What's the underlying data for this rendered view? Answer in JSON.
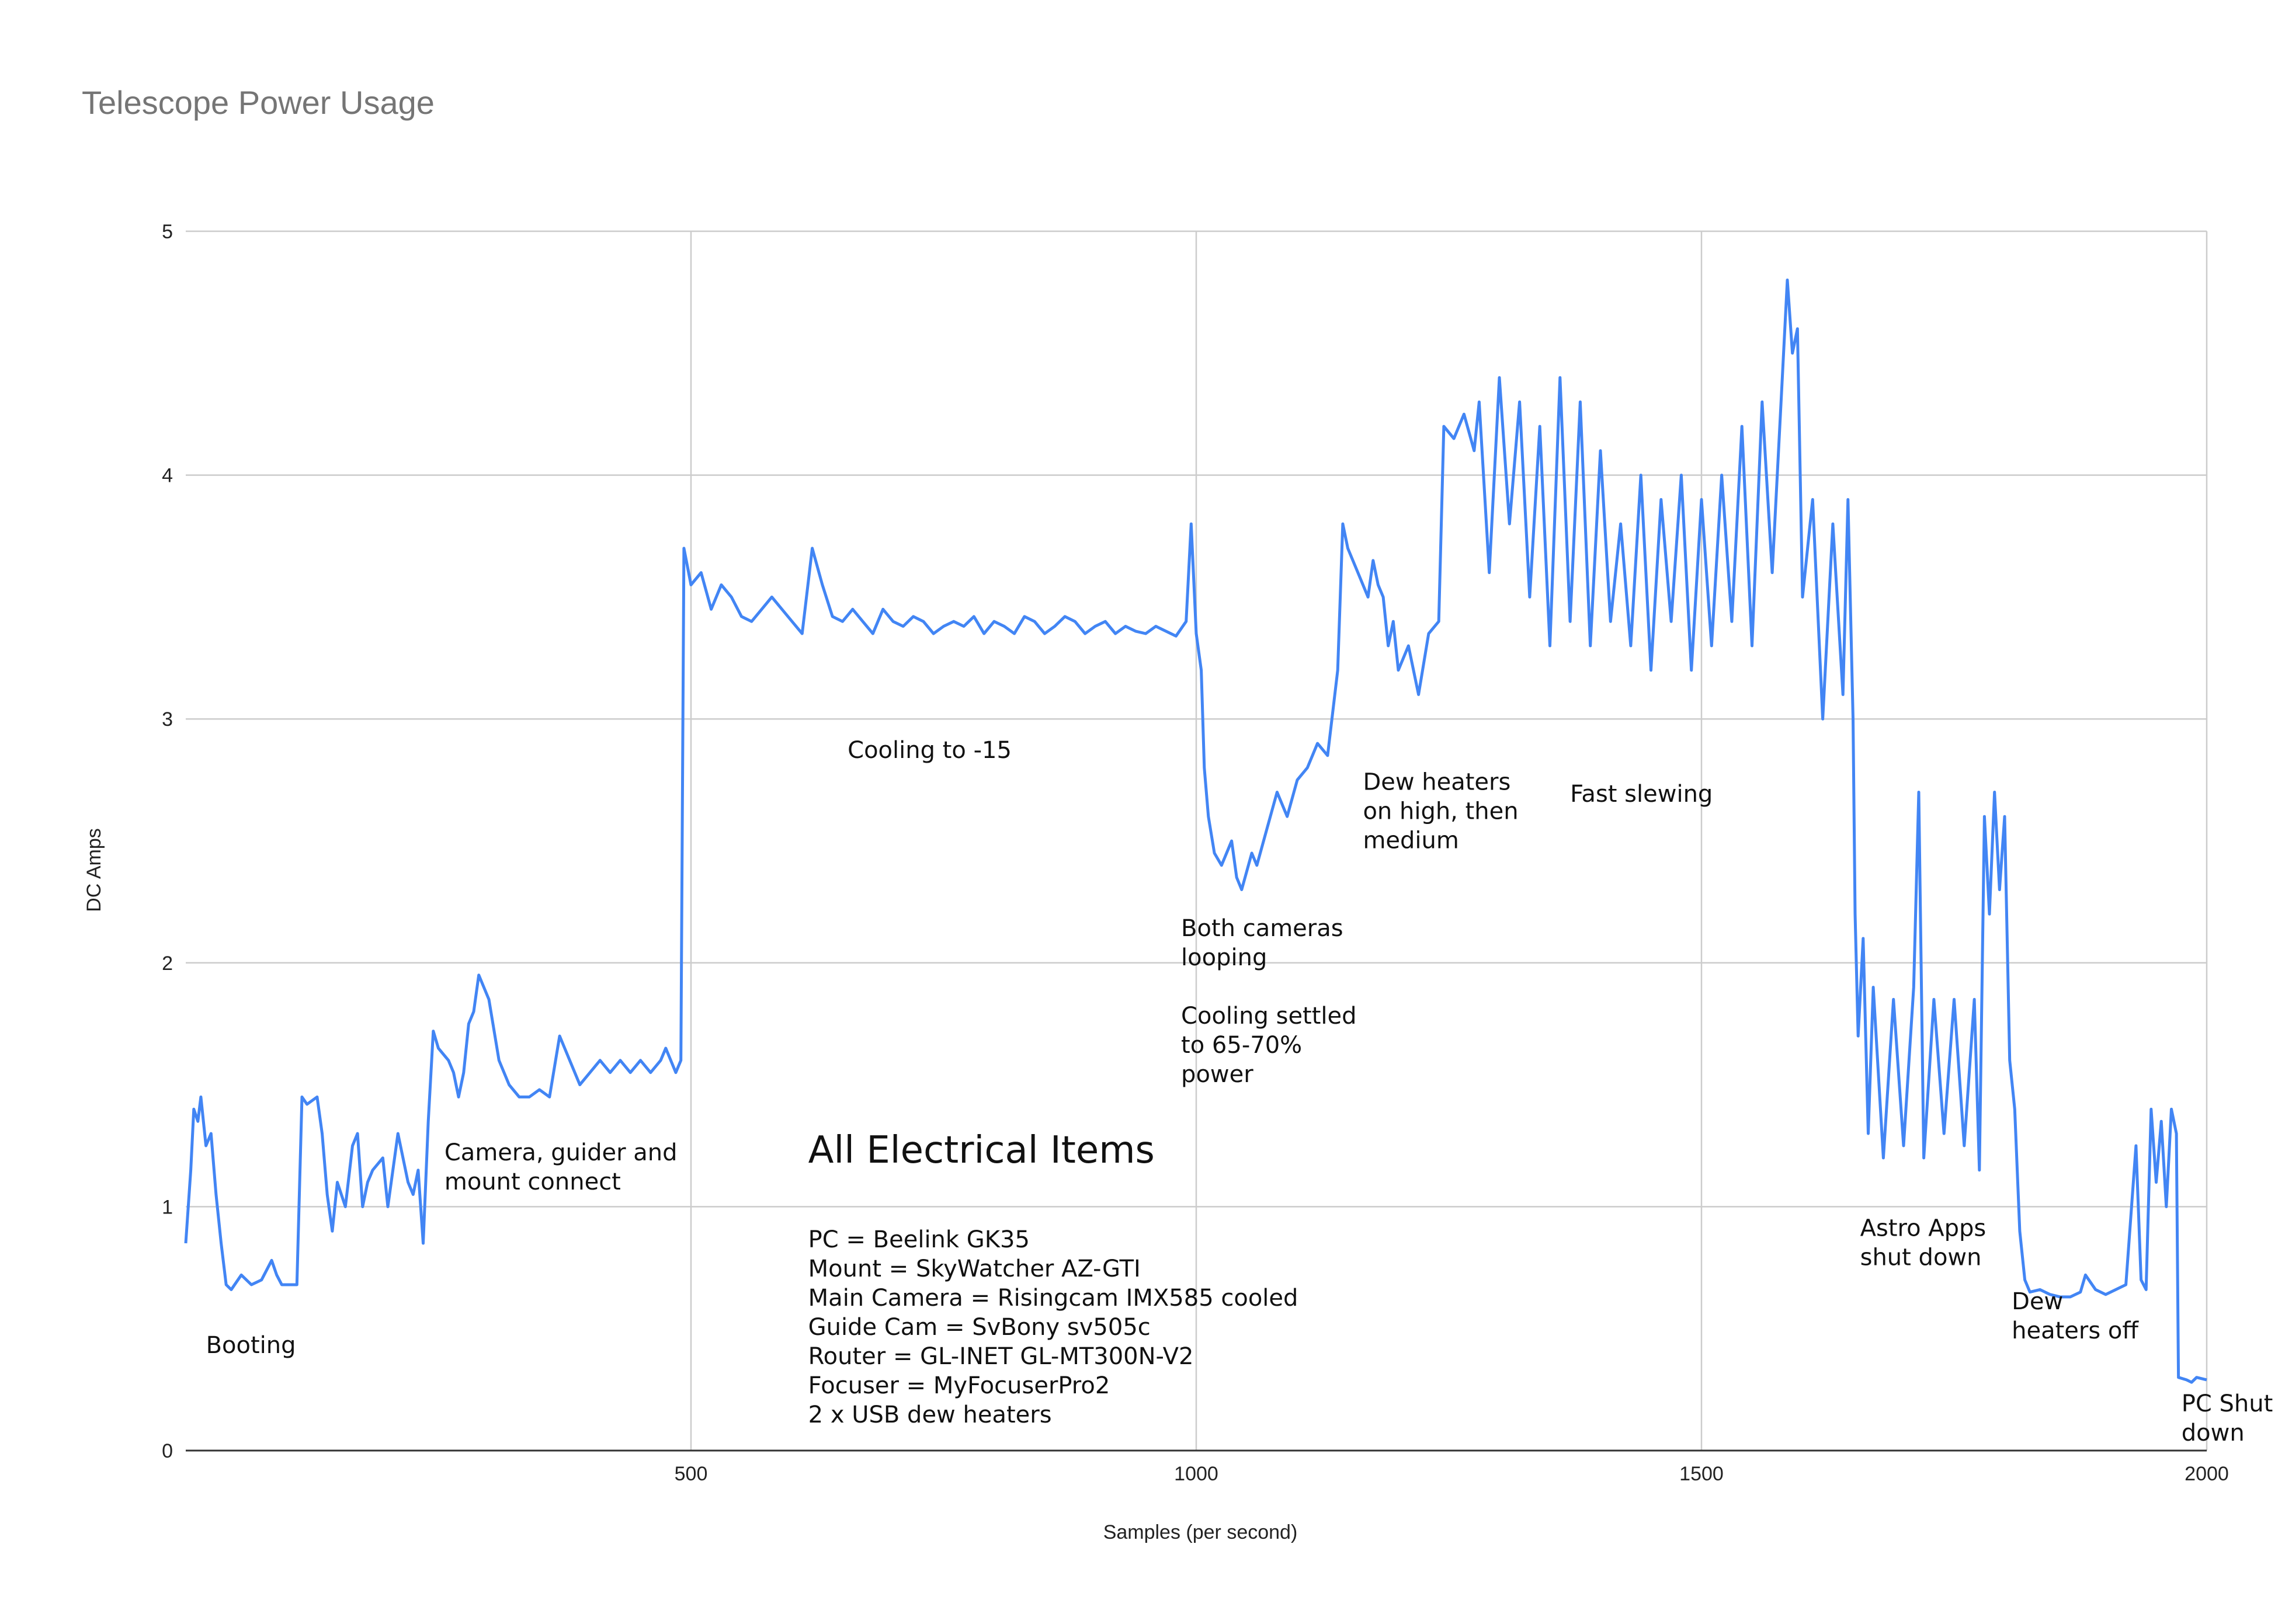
{
  "chart_data": {
    "type": "line",
    "title": "Telescope Power Usage",
    "xlabel": "Samples (per second)",
    "ylabel": "DC Amps",
    "xlim": [
      0,
      2000
    ],
    "ylim": [
      0,
      5
    ],
    "x_ticks": [
      500,
      1000,
      1500,
      2000
    ],
    "y_ticks": [
      0,
      1,
      2,
      3,
      4,
      5
    ],
    "grid": true,
    "legend": "none",
    "colors": {
      "series": "#4285F4",
      "grid": "#cccccc",
      "title": "#757575"
    },
    "series": [
      {
        "color": "#4285F4",
        "points": [
          [
            0,
            0.85
          ],
          [
            5,
            1.15
          ],
          [
            8,
            1.4
          ],
          [
            12,
            1.35
          ],
          [
            15,
            1.45
          ],
          [
            20,
            1.25
          ],
          [
            25,
            1.3
          ],
          [
            30,
            1.05
          ],
          [
            35,
            0.85
          ],
          [
            40,
            0.68
          ],
          [
            45,
            0.66
          ],
          [
            55,
            0.72
          ],
          [
            65,
            0.68
          ],
          [
            75,
            0.7
          ],
          [
            85,
            0.78
          ],
          [
            90,
            0.72
          ],
          [
            95,
            0.68
          ],
          [
            100,
            0.68
          ],
          [
            110,
            0.68
          ],
          [
            115,
            1.45
          ],
          [
            120,
            1.42
          ],
          [
            130,
            1.45
          ],
          [
            135,
            1.3
          ],
          [
            140,
            1.05
          ],
          [
            145,
            0.9
          ],
          [
            150,
            1.1
          ],
          [
            158,
            1.0
          ],
          [
            165,
            1.25
          ],
          [
            170,
            1.3
          ],
          [
            175,
            1.0
          ],
          [
            180,
            1.1
          ],
          [
            185,
            1.15
          ],
          [
            195,
            1.2
          ],
          [
            200,
            1.0
          ],
          [
            210,
            1.3
          ],
          [
            220,
            1.1
          ],
          [
            225,
            1.05
          ],
          [
            230,
            1.15
          ],
          [
            235,
            0.85
          ],
          [
            240,
            1.35
          ],
          [
            245,
            1.72
          ],
          [
            250,
            1.65
          ],
          [
            260,
            1.6
          ],
          [
            265,
            1.55
          ],
          [
            270,
            1.45
          ],
          [
            275,
            1.55
          ],
          [
            280,
            1.75
          ],
          [
            285,
            1.8
          ],
          [
            290,
            1.95
          ],
          [
            300,
            1.85
          ],
          [
            310,
            1.6
          ],
          [
            320,
            1.5
          ],
          [
            330,
            1.45
          ],
          [
            340,
            1.45
          ],
          [
            350,
            1.48
          ],
          [
            360,
            1.45
          ],
          [
            370,
            1.7
          ],
          [
            380,
            1.6
          ],
          [
            390,
            1.5
          ],
          [
            400,
            1.55
          ],
          [
            410,
            1.6
          ],
          [
            420,
            1.55
          ],
          [
            430,
            1.6
          ],
          [
            440,
            1.55
          ],
          [
            450,
            1.6
          ],
          [
            460,
            1.55
          ],
          [
            470,
            1.6
          ],
          [
            475,
            1.65
          ],
          [
            480,
            1.6
          ],
          [
            485,
            1.55
          ],
          [
            490,
            1.6
          ],
          [
            493,
            3.7
          ],
          [
            500,
            3.55
          ],
          [
            510,
            3.6
          ],
          [
            520,
            3.45
          ],
          [
            530,
            3.55
          ],
          [
            540,
            3.5
          ],
          [
            550,
            3.42
          ],
          [
            560,
            3.4
          ],
          [
            570,
            3.45
          ],
          [
            580,
            3.5
          ],
          [
            590,
            3.45
          ],
          [
            600,
            3.4
          ],
          [
            610,
            3.35
          ],
          [
            620,
            3.7
          ],
          [
            630,
            3.55
          ],
          [
            640,
            3.42
          ],
          [
            650,
            3.4
          ],
          [
            660,
            3.45
          ],
          [
            670,
            3.4
          ],
          [
            680,
            3.35
          ],
          [
            690,
            3.45
          ],
          [
            700,
            3.4
          ],
          [
            710,
            3.38
          ],
          [
            720,
            3.42
          ],
          [
            730,
            3.4
          ],
          [
            740,
            3.35
          ],
          [
            750,
            3.38
          ],
          [
            760,
            3.4
          ],
          [
            770,
            3.38
          ],
          [
            780,
            3.42
          ],
          [
            790,
            3.35
          ],
          [
            800,
            3.4
          ],
          [
            810,
            3.38
          ],
          [
            820,
            3.35
          ],
          [
            830,
            3.42
          ],
          [
            840,
            3.4
          ],
          [
            850,
            3.35
          ],
          [
            860,
            3.38
          ],
          [
            870,
            3.42
          ],
          [
            880,
            3.4
          ],
          [
            890,
            3.35
          ],
          [
            900,
            3.38
          ],
          [
            910,
            3.4
          ],
          [
            920,
            3.35
          ],
          [
            930,
            3.38
          ],
          [
            940,
            3.36
          ],
          [
            950,
            3.35
          ],
          [
            960,
            3.38
          ],
          [
            970,
            3.36
          ],
          [
            980,
            3.34
          ],
          [
            990,
            3.4
          ],
          [
            995,
            3.8
          ],
          [
            1000,
            3.35
          ],
          [
            1005,
            3.2
          ],
          [
            1008,
            2.8
          ],
          [
            1012,
            2.6
          ],
          [
            1018,
            2.45
          ],
          [
            1025,
            2.4
          ],
          [
            1035,
            2.5
          ],
          [
            1040,
            2.35
          ],
          [
            1045,
            2.3
          ],
          [
            1055,
            2.45
          ],
          [
            1060,
            2.4
          ],
          [
            1070,
            2.55
          ],
          [
            1080,
            2.7
          ],
          [
            1090,
            2.6
          ],
          [
            1100,
            2.75
          ],
          [
            1110,
            2.8
          ],
          [
            1120,
            2.9
          ],
          [
            1130,
            2.85
          ],
          [
            1140,
            3.2
          ],
          [
            1145,
            3.8
          ],
          [
            1150,
            3.7
          ],
          [
            1160,
            3.6
          ],
          [
            1170,
            3.5
          ],
          [
            1175,
            3.65
          ],
          [
            1180,
            3.55
          ],
          [
            1185,
            3.5
          ],
          [
            1190,
            3.3
          ],
          [
            1195,
            3.4
          ],
          [
            1200,
            3.2
          ],
          [
            1210,
            3.3
          ],
          [
            1220,
            3.1
          ],
          [
            1230,
            3.35
          ],
          [
            1240,
            3.4
          ],
          [
            1245,
            4.2
          ],
          [
            1255,
            4.15
          ],
          [
            1265,
            4.25
          ],
          [
            1275,
            4.1
          ],
          [
            1280,
            4.3
          ],
          [
            1290,
            3.6
          ],
          [
            1300,
            4.4
          ],
          [
            1310,
            3.8
          ],
          [
            1320,
            4.3
          ],
          [
            1330,
            3.5
          ],
          [
            1340,
            4.2
          ],
          [
            1350,
            3.3
          ],
          [
            1360,
            4.4
          ],
          [
            1370,
            3.4
          ],
          [
            1380,
            4.3
          ],
          [
            1390,
            3.3
          ],
          [
            1400,
            4.1
          ],
          [
            1410,
            3.4
          ],
          [
            1420,
            3.8
          ],
          [
            1430,
            3.3
          ],
          [
            1440,
            4.0
          ],
          [
            1450,
            3.2
          ],
          [
            1460,
            3.9
          ],
          [
            1470,
            3.4
          ],
          [
            1480,
            4.0
          ],
          [
            1490,
            3.2
          ],
          [
            1500,
            3.9
          ],
          [
            1510,
            3.3
          ],
          [
            1520,
            4.0
          ],
          [
            1530,
            3.4
          ],
          [
            1540,
            4.2
          ],
          [
            1550,
            3.3
          ],
          [
            1560,
            4.3
          ],
          [
            1570,
            3.6
          ],
          [
            1580,
            4.4
          ],
          [
            1585,
            4.8
          ],
          [
            1590,
            4.5
          ],
          [
            1595,
            4.6
          ],
          [
            1600,
            3.5
          ],
          [
            1610,
            3.9
          ],
          [
            1620,
            3.0
          ],
          [
            1630,
            3.8
          ],
          [
            1640,
            3.1
          ],
          [
            1645,
            3.9
          ],
          [
            1650,
            3.0
          ],
          [
            1652,
            2.2
          ],
          [
            1655,
            1.7
          ],
          [
            1660,
            2.1
          ],
          [
            1665,
            1.3
          ],
          [
            1670,
            1.9
          ],
          [
            1680,
            1.2
          ],
          [
            1690,
            1.85
          ],
          [
            1700,
            1.25
          ],
          [
            1710,
            1.9
          ],
          [
            1715,
            2.7
          ],
          [
            1720,
            1.2
          ],
          [
            1730,
            1.85
          ],
          [
            1740,
            1.3
          ],
          [
            1750,
            1.85
          ],
          [
            1760,
            1.25
          ],
          [
            1770,
            1.85
          ],
          [
            1775,
            1.15
          ],
          [
            1780,
            2.6
          ],
          [
            1785,
            2.2
          ],
          [
            1790,
            2.7
          ],
          [
            1795,
            2.3
          ],
          [
            1800,
            2.6
          ],
          [
            1805,
            1.6
          ],
          [
            1810,
            1.4
          ],
          [
            1815,
            0.9
          ],
          [
            1820,
            0.7
          ],
          [
            1825,
            0.65
          ],
          [
            1835,
            0.66
          ],
          [
            1845,
            0.64
          ],
          [
            1855,
            0.63
          ],
          [
            1865,
            0.63
          ],
          [
            1875,
            0.65
          ],
          [
            1880,
            0.72
          ],
          [
            1890,
            0.66
          ],
          [
            1900,
            0.64
          ],
          [
            1910,
            0.66
          ],
          [
            1920,
            0.68
          ],
          [
            1930,
            1.25
          ],
          [
            1935,
            0.7
          ],
          [
            1940,
            0.66
          ],
          [
            1945,
            1.4
          ],
          [
            1950,
            1.1
          ],
          [
            1955,
            1.35
          ],
          [
            1960,
            1.0
          ],
          [
            1965,
            1.4
          ],
          [
            1970,
            1.3
          ],
          [
            1972,
            0.3
          ],
          [
            1980,
            0.29
          ],
          [
            1985,
            0.28
          ],
          [
            1990,
            0.3
          ],
          [
            2000,
            0.29
          ]
        ]
      }
    ],
    "annotations": [
      {
        "text": [
          "Booting"
        ],
        "x": 20,
        "y": 0.4
      },
      {
        "text": [
          "Camera, guider and",
          "mount connect"
        ],
        "x": 256,
        "y": 1.19
      },
      {
        "text": [
          "Cooling to -15"
        ],
        "x": 655,
        "y": 2.84
      },
      {
        "text": [
          "Dew heaters",
          "on high, then",
          "medium"
        ],
        "x": 1165,
        "y": 2.71
      },
      {
        "text": [
          "Fast slewing"
        ],
        "x": 1370,
        "y": 2.66
      },
      {
        "text": [
          "Both cameras",
          "looping",
          "",
          "Cooling settled",
          "to 65-70%",
          "power"
        ],
        "x": 985,
        "y": 2.11
      },
      {
        "text": [
          "Astro Apps",
          "shut down"
        ],
        "x": 1657,
        "y": 0.88
      },
      {
        "text": [
          "Dew",
          "heaters off"
        ],
        "x": 1807,
        "y": 0.58
      },
      {
        "text": [
          "PC Shut",
          "down"
        ],
        "x": 1975,
        "y": 0.16
      }
    ],
    "info_box": {
      "heading": "All Electrical Items",
      "items": [
        "PC = Beelink GK35",
        "Mount = SkyWatcher AZ-GTI",
        "Main Camera = Risingcam IMX585 cooled",
        "Guide Cam = SvBony sv505c",
        "Router = GL-INET GL-MT300N-V2",
        "Focuser = MyFocuserPro2",
        "2 x USB dew heaters"
      ],
      "x": 616,
      "y": 1.18
    }
  }
}
